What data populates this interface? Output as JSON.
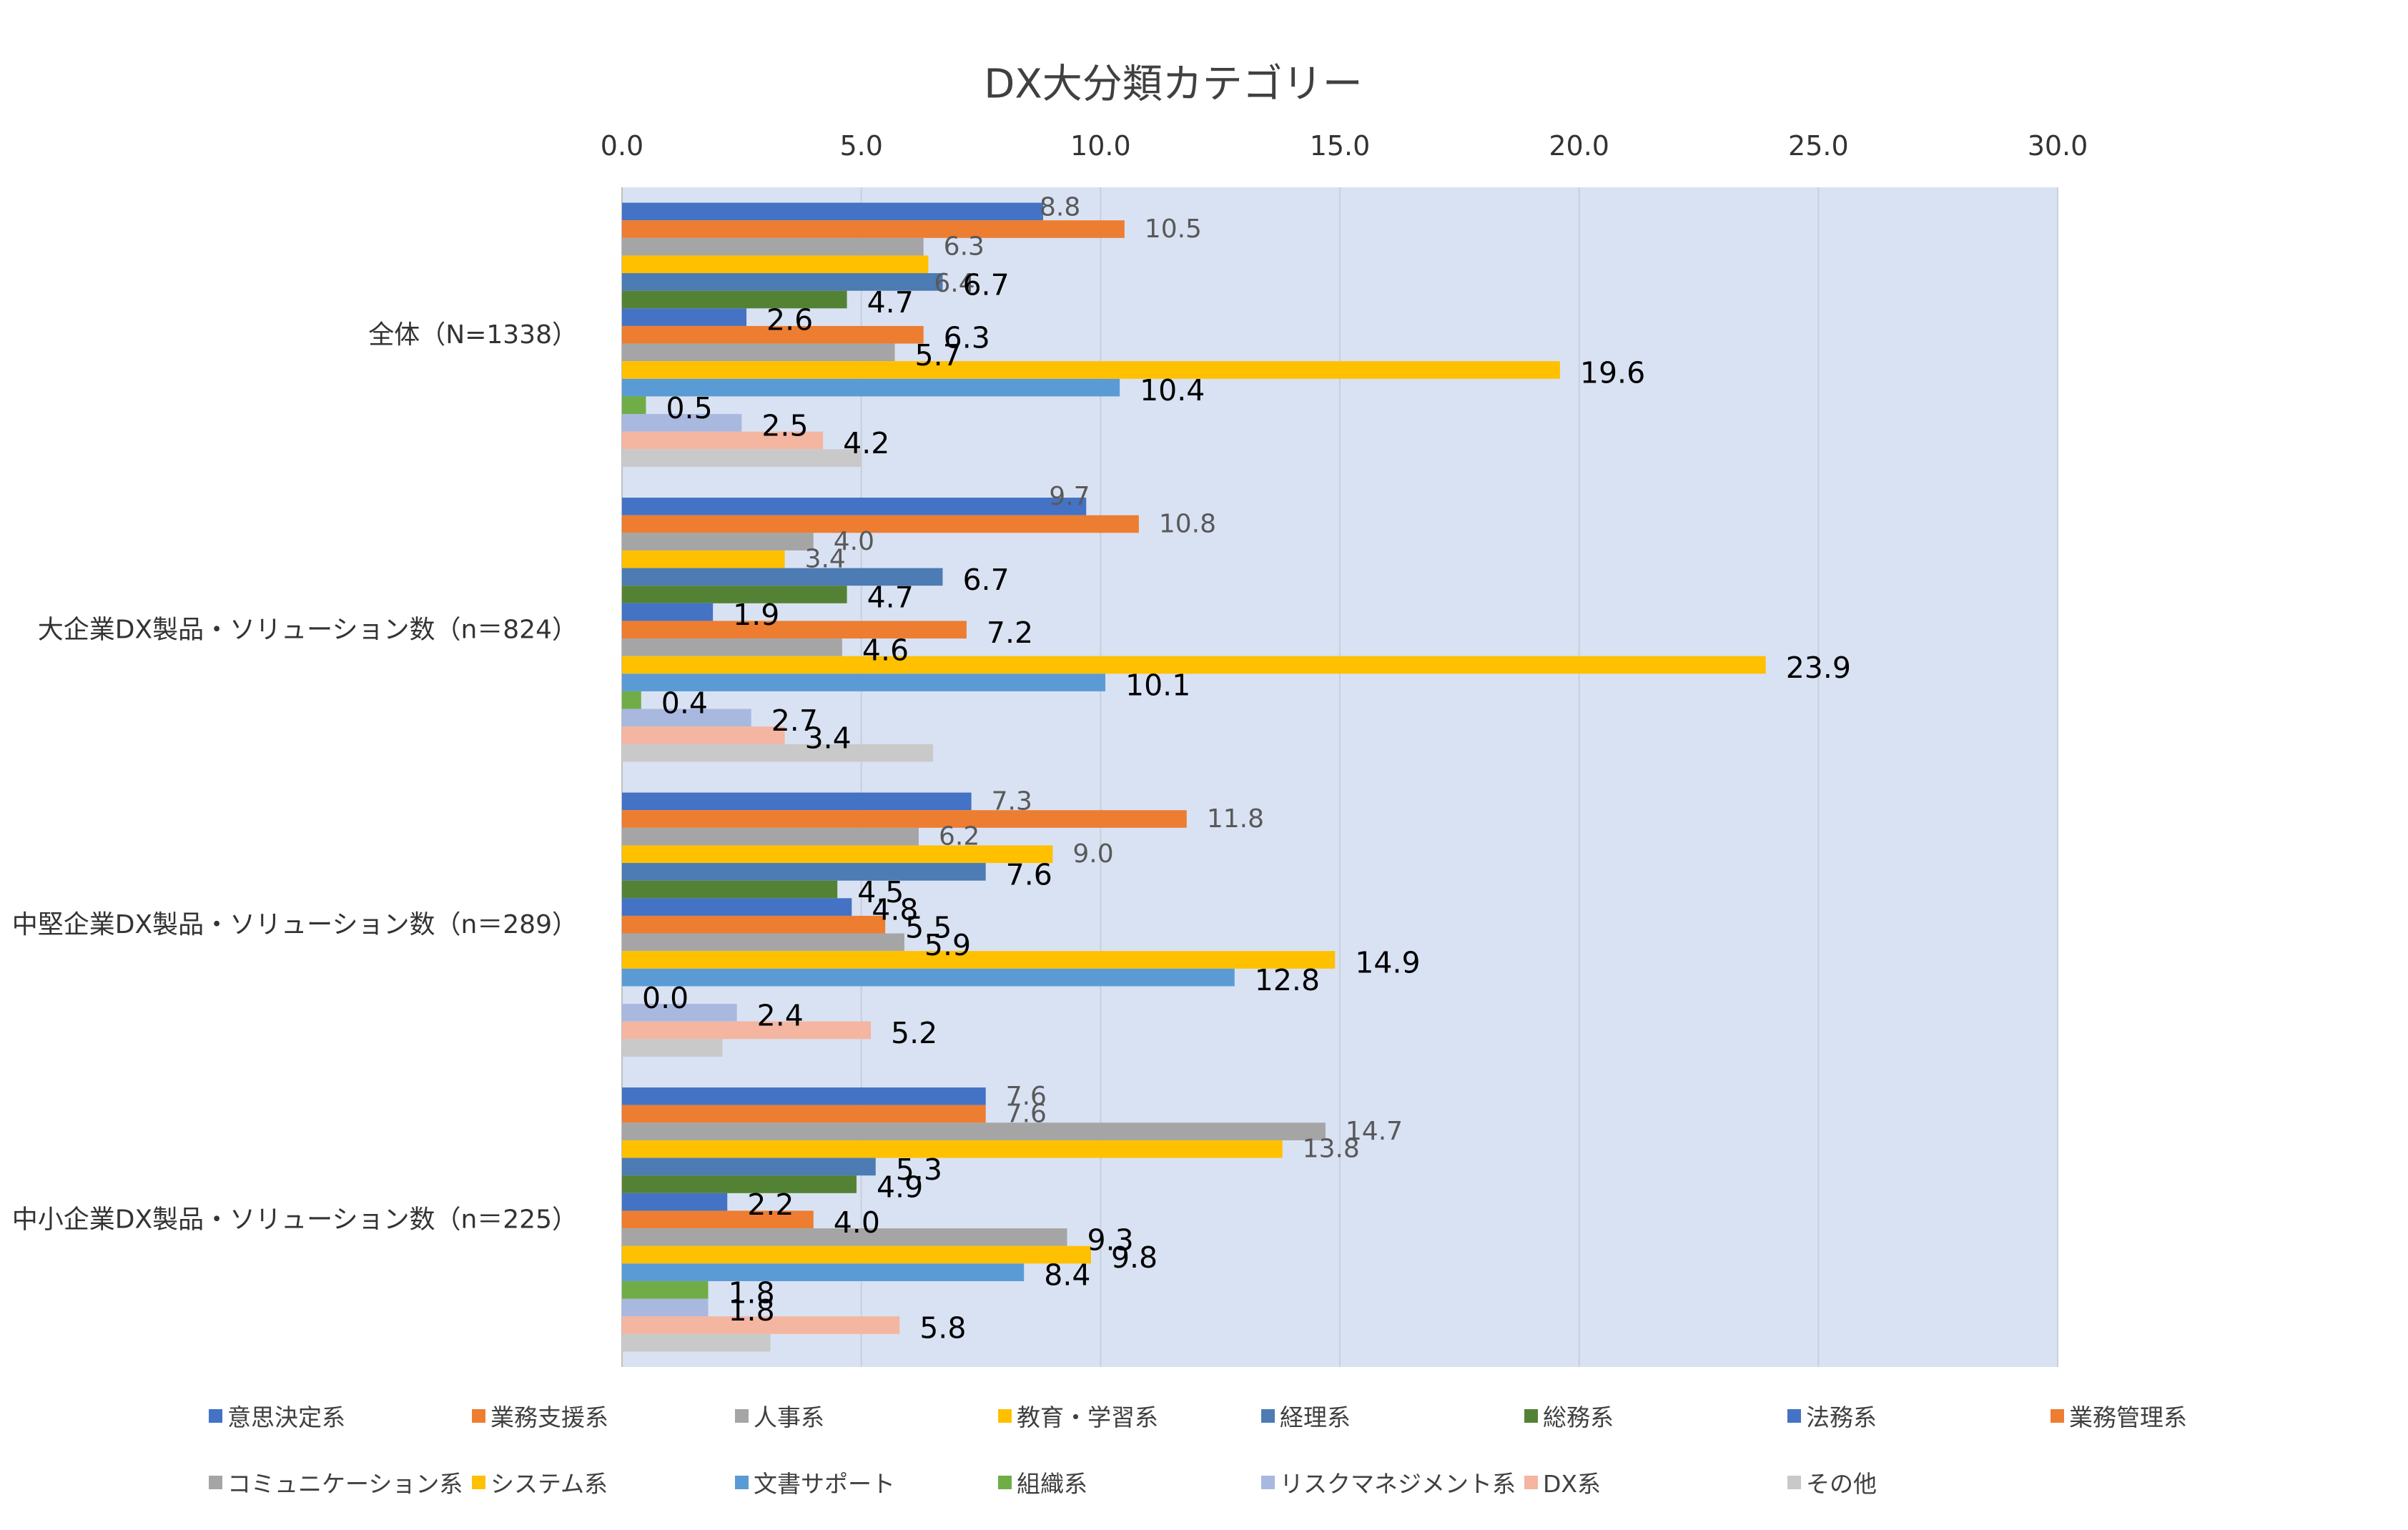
{
  "chart_data": {
    "type": "bar",
    "orientation": "horizontal",
    "title": "DX大分類カテゴリー",
    "categories": [
      "全体（N=1338）",
      "大企業DX製品・ソリューション数（n＝824）",
      "中堅企業DX製品・ソリューション数（n＝289）",
      "中小企業DX製品・ソリューション数（n＝225）"
    ],
    "xlim": [
      0,
      30
    ],
    "x_ticks": [
      0,
      5,
      10,
      15,
      20,
      25,
      30
    ],
    "x_tick_labels": [
      "0.0",
      "5.0",
      "10.0",
      "15.0",
      "20.0",
      "25.0",
      "30.0"
    ],
    "x_axis_position": "top",
    "grid": true,
    "legend_position": "bottom",
    "plot_background": "#D9E2F3",
    "series": [
      {
        "name": "意思決定系",
        "color": "#4472C4",
        "values": [
          8.8,
          9.7,
          7.3,
          7.6
        ]
      },
      {
        "name": "業務支援系",
        "color": "#ED7D31",
        "values": [
          10.5,
          10.8,
          11.8,
          7.6
        ]
      },
      {
        "name": "人事系",
        "color": "#A5A5A5",
        "values": [
          6.3,
          4.0,
          6.2,
          14.7
        ]
      },
      {
        "name": "教育・学習系",
        "color": "#FFC000",
        "values": [
          6.4,
          3.4,
          9.0,
          13.8
        ]
      },
      {
        "name": "経理系",
        "color": "#4D7BB3",
        "values": [
          6.7,
          6.7,
          7.6,
          5.3
        ]
      },
      {
        "name": "総務系",
        "color": "#548235",
        "values": [
          4.7,
          4.7,
          4.5,
          4.9
        ]
      },
      {
        "name": "法務系",
        "color": "#4472C4",
        "values": [
          2.6,
          1.9,
          4.8,
          2.2
        ]
      },
      {
        "name": "業務管理系",
        "color": "#ED7D31",
        "values": [
          6.3,
          7.2,
          5.5,
          4.0
        ]
      },
      {
        "name": "コミュニケーション系",
        "color": "#A5A5A5",
        "values": [
          5.7,
          4.6,
          5.9,
          9.3
        ]
      },
      {
        "name": "システム系",
        "color": "#FFC000",
        "values": [
          19.6,
          23.9,
          14.9,
          9.8
        ]
      },
      {
        "name": "文書サポート",
        "color": "#5B9BD5",
        "values": [
          10.4,
          10.1,
          12.8,
          8.4
        ]
      },
      {
        "name": "組織系",
        "color": "#70AD47",
        "values": [
          0.5,
          0.4,
          0.0,
          1.8
        ]
      },
      {
        "name": "リスクマネジメント系",
        "color": "#A9B8DF",
        "values": [
          2.5,
          2.7,
          2.4,
          1.8
        ]
      },
      {
        "name": "DX系",
        "color": "#F4B5A1",
        "values": [
          4.2,
          3.4,
          5.2,
          5.8
        ]
      },
      {
        "name": "その他",
        "color": "#C9C9C9",
        "values": [
          5.0,
          6.5,
          2.1,
          3.1
        ],
        "data_labels": false
      }
    ]
  }
}
